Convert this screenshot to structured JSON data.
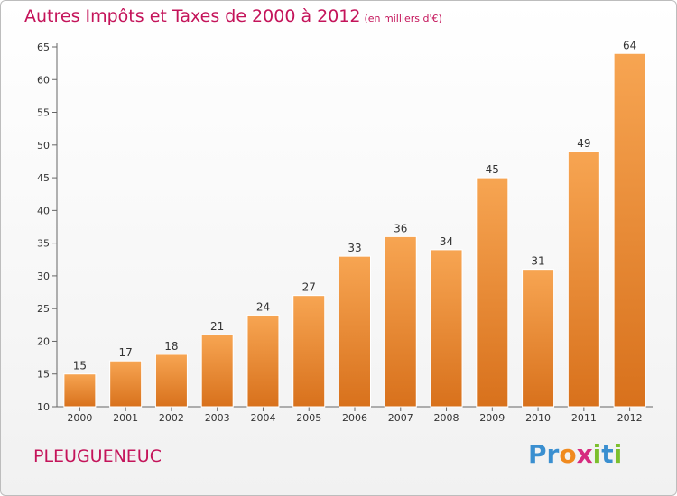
{
  "header": {
    "title": "Autres Impôts et Taxes de 2000 à 2012",
    "subtitle": "(en milliers d'€)"
  },
  "footer": {
    "commune": "PLEUGUENEUC",
    "logo_letters": [
      {
        "char": "P",
        "color": "#3a8fd0"
      },
      {
        "char": "r",
        "color": "#3a8fd0"
      },
      {
        "char": "o",
        "color": "#f08a1e"
      },
      {
        "char": "x",
        "color": "#d62b7f"
      },
      {
        "char": "i",
        "color": "#7cbf2d"
      },
      {
        "char": "t",
        "color": "#3a8fd0"
      },
      {
        "char": "i",
        "color": "#7cbf2d"
      }
    ]
  },
  "chart_data": {
    "type": "bar",
    "title": "Autres Impôts et Taxes de 2000 à 2012",
    "subtitle": "(en milliers d'€)",
    "categories": [
      "2000",
      "2001",
      "2002",
      "2003",
      "2004",
      "2005",
      "2006",
      "2007",
      "2008",
      "2009",
      "2010",
      "2011",
      "2012"
    ],
    "values": [
      15,
      17,
      18,
      21,
      24,
      27,
      33,
      36,
      34,
      45,
      31,
      49,
      64
    ],
    "ylim": [
      10,
      65
    ],
    "yticks": [
      10,
      15,
      20,
      25,
      30,
      35,
      40,
      45,
      50,
      55,
      60,
      65
    ],
    "grid": false,
    "bar_color_top": "#f7a552",
    "bar_color_bottom": "#d8711c"
  }
}
